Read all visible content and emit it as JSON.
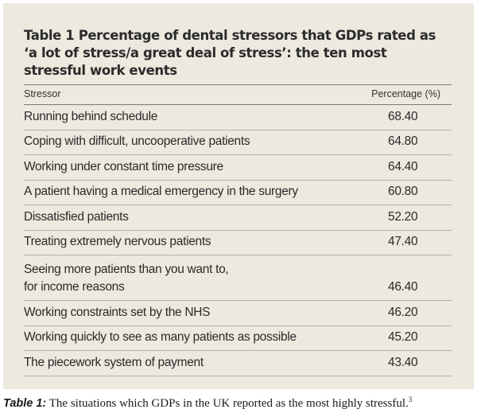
{
  "table": {
    "title": "Table 1 Percentage of dental stressors that GDPs rated as ‘a lot of stress/a great deal of stress’: the ten most stressful work events",
    "col_stressor": "Stressor",
    "col_percentage": "Percentage (%)",
    "rows": [
      {
        "stressor": "Running behind schedule",
        "percentage": "68.40"
      },
      {
        "stressor": "Coping with difficult, uncooperative patients",
        "percentage": "64.80"
      },
      {
        "stressor": "Working under constant time pressure",
        "percentage": "64.40"
      },
      {
        "stressor": "A patient having a medical emergency in the surgery",
        "percentage": "60.80"
      },
      {
        "stressor": "Dissatisfied patients",
        "percentage": "52.20"
      },
      {
        "stressor": "Treating extremely nervous patients",
        "percentage": "47.40"
      },
      {
        "stressor": "Seeing more patients than you want to,",
        "stressor_line2": "for income reasons",
        "percentage": "46.40"
      },
      {
        "stressor": "Working constraints set by the NHS",
        "percentage": "46.20"
      },
      {
        "stressor": "Working quickly to see as many patients as possible",
        "percentage": "45.20"
      },
      {
        "stressor": "The piecework system of payment",
        "percentage": "43.40"
      }
    ]
  },
  "caption": {
    "label": "Table 1:",
    "text": " The situations which GDPs in the UK reported as the most highly stressful.",
    "ref": "3"
  },
  "colors": {
    "panel_background": "#ede9df",
    "text": "#2a2a2a",
    "rule": "#7a7a7a"
  }
}
